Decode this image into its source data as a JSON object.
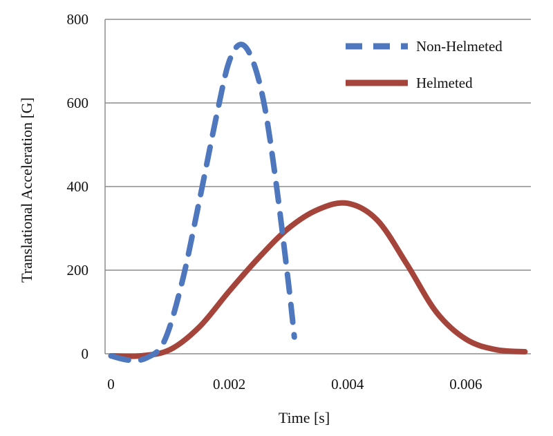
{
  "chart_data": {
    "type": "line",
    "title": "",
    "xlabel": "Time [s]",
    "ylabel": "Translational Acceleration [G]",
    "xlim": [
      -0.0001,
      0.0071
    ],
    "ylim": [
      0,
      800
    ],
    "xticks": [
      0,
      0.002,
      0.004,
      0.006
    ],
    "xtick_labels": [
      "0",
      "0.002",
      "0.004",
      "0.006"
    ],
    "yticks": [
      0,
      200,
      400,
      600,
      800
    ],
    "ytick_labels": [
      "0",
      "200",
      "400",
      "600",
      "800"
    ],
    "grid": "horizontal",
    "legend_position": "top-right",
    "series": [
      {
        "name": "Non-Helmeted",
        "style": "dashed",
        "color": "#4f77be",
        "x": [
          0,
          0.0003,
          0.0006,
          0.0009,
          0.0012,
          0.0015,
          0.0018,
          0.002,
          0.0022,
          0.0024,
          0.0026,
          0.0028,
          0.003,
          0.0031
        ],
        "y": [
          -5,
          -15,
          -10,
          30,
          170,
          370,
          580,
          700,
          740,
          700,
          590,
          400,
          170,
          40
        ]
      },
      {
        "name": "Helmeted",
        "style": "solid",
        "color": "#a5443a",
        "x": [
          0,
          0.0005,
          0.001,
          0.0015,
          0.002,
          0.0025,
          0.003,
          0.0035,
          0.004,
          0.0045,
          0.005,
          0.0055,
          0.006,
          0.0065,
          0.007
        ],
        "y": [
          -5,
          -5,
          10,
          65,
          150,
          230,
          300,
          345,
          360,
          320,
          215,
          100,
          35,
          10,
          5
        ]
      }
    ]
  }
}
